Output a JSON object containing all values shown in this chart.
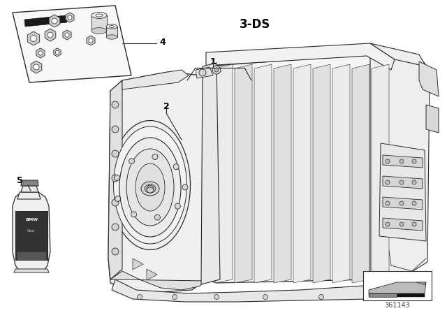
{
  "bg_color": "#ffffff",
  "label_3ds": "3-DS",
  "label_1": "1",
  "label_2": "2",
  "label_4": "4",
  "label_5": "5",
  "diagram_number": "361143",
  "lc": "#2a2a2a",
  "lc_thin": "#444444",
  "fc_white": "#ffffff",
  "fc_light": "#f0f0f0",
  "fc_mid": "#d8d8d8",
  "fc_dark": "#aaaaaa",
  "fc_vdark": "#555555",
  "figsize": [
    6.4,
    4.48
  ],
  "dpi": 100
}
